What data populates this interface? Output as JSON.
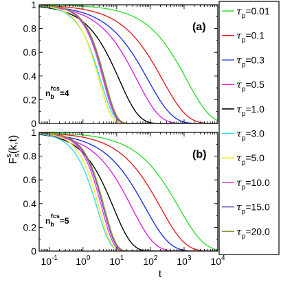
{
  "chart_data": [
    {
      "type": "line",
      "panel_label": "(a)",
      "annotation": {
        "main": "n",
        "sub": "b",
        "sup": "fcs",
        "value": "=4"
      },
      "xscale": "log",
      "xlim": [
        0.05,
        10000
      ],
      "ylim": [
        0,
        1
      ],
      "xticks": [
        0.1,
        1,
        10,
        100,
        1000,
        10000
      ],
      "xtick_labels": [
        {
          "base": "10",
          "exp": "-1"
        },
        {
          "base": "10",
          "exp": "0"
        },
        {
          "base": "10",
          "exp": "1"
        },
        {
          "base": "10",
          "exp": "2"
        },
        {
          "base": "10",
          "exp": "3"
        },
        {
          "base": "10",
          "exp": "4"
        }
      ],
      "yticks": [
        0,
        0.2,
        0.4,
        0.6,
        0.8,
        1
      ],
      "ytick_labels": [
        "0",
        "0.2",
        "0.4",
        "0.6",
        "0.8",
        "1"
      ],
      "grid": false,
      "series": [
        {
          "name": "τp=0.01",
          "color": "#33dd33",
          "tau": 1200,
          "beta": 0.62
        },
        {
          "name": "τp=0.1",
          "color": "#e02020",
          "tau": 230,
          "beta": 0.6
        },
        {
          "name": "τp=0.3",
          "color": "#2030e0",
          "tau": 85,
          "beta": 0.6
        },
        {
          "name": "τp=0.5",
          "color": "#e020e0",
          "tau": 40,
          "beta": 0.65
        },
        {
          "name": "τp=1.0",
          "color": "#000000",
          "tau": 12,
          "beta": 0.75
        },
        {
          "name": "τp=3.0",
          "color": "#30d8e8",
          "tau": 3.3,
          "beta": 1.1
        },
        {
          "name": "τp=5.0",
          "color": "#eeee20",
          "tau": 3.0,
          "beta": 1.2
        },
        {
          "name": "τp=10.0",
          "color": "#e040e0",
          "tau": 4.0,
          "beta": 1.25
        },
        {
          "name": "τp=15.0",
          "color": "#7050c0",
          "tau": 4.3,
          "beta": 1.25
        },
        {
          "name": "τp=20.0",
          "color": "#909030",
          "tau": 4.5,
          "beta": 1.25
        }
      ]
    },
    {
      "type": "line",
      "panel_label": "(b)",
      "annotation": {
        "main": "n",
        "sub": "b",
        "sup": "fcs",
        "value": "=5"
      },
      "xscale": "log",
      "xlim": [
        0.05,
        10000
      ],
      "ylim": [
        0,
        1
      ],
      "xticks": [
        0.1,
        1,
        10,
        100,
        1000,
        10000
      ],
      "xtick_labels": [
        {
          "base": "10",
          "exp": "-1"
        },
        {
          "base": "10",
          "exp": "0"
        },
        {
          "base": "10",
          "exp": "1"
        },
        {
          "base": "10",
          "exp": "2"
        },
        {
          "base": "10",
          "exp": "3"
        },
        {
          "base": "10",
          "exp": "4"
        }
      ],
      "yticks": [
        0,
        0.2,
        0.4,
        0.6,
        0.8,
        1
      ],
      "ytick_labels": [
        "0",
        "0.2",
        "0.4",
        "0.6",
        "0.8",
        "1"
      ],
      "grid": false,
      "series": [
        {
          "name": "τp=0.01",
          "color": "#33dd33",
          "tau": 700,
          "beta": 0.58
        },
        {
          "name": "τp=0.1",
          "color": "#e02020",
          "tau": 200,
          "beta": 0.6
        },
        {
          "name": "τp=0.3",
          "color": "#2030e0",
          "tau": 70,
          "beta": 0.6
        },
        {
          "name": "τp=0.5",
          "color": "#e020e0",
          "tau": 28,
          "beta": 0.65
        },
        {
          "name": "τp=1.0",
          "color": "#000000",
          "tau": 8,
          "beta": 0.8
        },
        {
          "name": "τp=3.0",
          "color": "#30d8e8",
          "tau": 2.6,
          "beta": 1.1
        },
        {
          "name": "τp=5.0",
          "color": "#eeee20",
          "tau": 3.0,
          "beta": 1.2
        },
        {
          "name": "τp=10.0",
          "color": "#e040e0",
          "tau": 3.6,
          "beta": 1.25
        },
        {
          "name": "τp=15.0",
          "color": "#7050c0",
          "tau": 4.0,
          "beta": 1.25
        },
        {
          "name": "τp=20.0",
          "color": "#909030",
          "tau": 4.3,
          "beta": 1.25
        }
      ]
    }
  ],
  "axes": {
    "xlabel": "t",
    "ylabel": {
      "main": "F",
      "sub": "s",
      "sup": "s",
      "arg": "(k,t)"
    }
  },
  "legend": {
    "placement": "right",
    "entries": [
      {
        "symbol": "τ",
        "sub": "p",
        "value": "=0.01",
        "color": "#33dd33"
      },
      {
        "symbol": "τ",
        "sub": "p",
        "value": "=0.1",
        "color": "#e02020"
      },
      {
        "symbol": "τ",
        "sub": "p",
        "value": "=0.3",
        "color": "#2030e0"
      },
      {
        "symbol": "τ",
        "sub": "p",
        "value": "=0.5",
        "color": "#e020e0"
      },
      {
        "symbol": "τ",
        "sub": "p",
        "value": "=1.0",
        "color": "#000000"
      },
      {
        "symbol": "τ",
        "sub": "p",
        "value": "=3.0",
        "color": "#30d8e8"
      },
      {
        "symbol": "τ",
        "sub": "p",
        "value": "=5.0",
        "color": "#eeee20"
      },
      {
        "symbol": "τ",
        "sub": "p",
        "value": "=10.0",
        "color": "#e040e0"
      },
      {
        "symbol": "τ",
        "sub": "p",
        "value": "=15.0",
        "color": "#7050c0"
      },
      {
        "symbol": "τ",
        "sub": "p",
        "value": "=20.0",
        "color": "#909030"
      }
    ]
  }
}
